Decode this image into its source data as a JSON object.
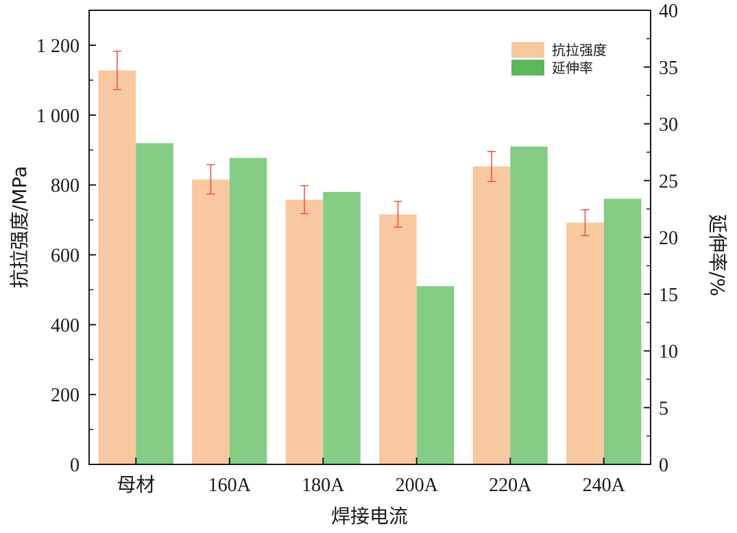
{
  "chart_data": {
    "type": "bar",
    "xlabel": "焊接电流",
    "categories": [
      "母材",
      "160A",
      "180A",
      "200A",
      "220A",
      "240A"
    ],
    "y_left": {
      "label": "抗拉强度/MPa",
      "lim": [
        0,
        1300
      ],
      "ticks": [
        0,
        200,
        400,
        600,
        800,
        1000,
        1200
      ],
      "tick_labels": [
        "0",
        "200",
        "400",
        "600",
        "800",
        "1 000",
        "1 200"
      ]
    },
    "y_right": {
      "label": "延伸率/%",
      "lim": [
        0,
        40
      ],
      "ticks": [
        0,
        5,
        10,
        15,
        20,
        25,
        30,
        35,
        40
      ],
      "tick_labels": [
        "0",
        "5",
        "10",
        "15",
        "20",
        "25",
        "30",
        "35",
        "40"
      ]
    },
    "series": [
      {
        "name": "抗拉强度",
        "axis": "left",
        "color": "#f8c8a0",
        "values": [
          1128,
          816,
          758,
          716,
          853,
          692
        ],
        "error": [
          55,
          42,
          40,
          37,
          43,
          37
        ]
      },
      {
        "name": "延伸率",
        "axis": "right",
        "color": "#85cc85",
        "values": [
          28.3,
          27.0,
          24.0,
          15.7,
          28.0,
          23.4
        ]
      }
    ],
    "legend": {
      "position": "top-right",
      "swatch_colors": [
        "#f8c8a0",
        "#5cb85c"
      ]
    },
    "errorbar_color": "#e8503a",
    "grid": false
  }
}
